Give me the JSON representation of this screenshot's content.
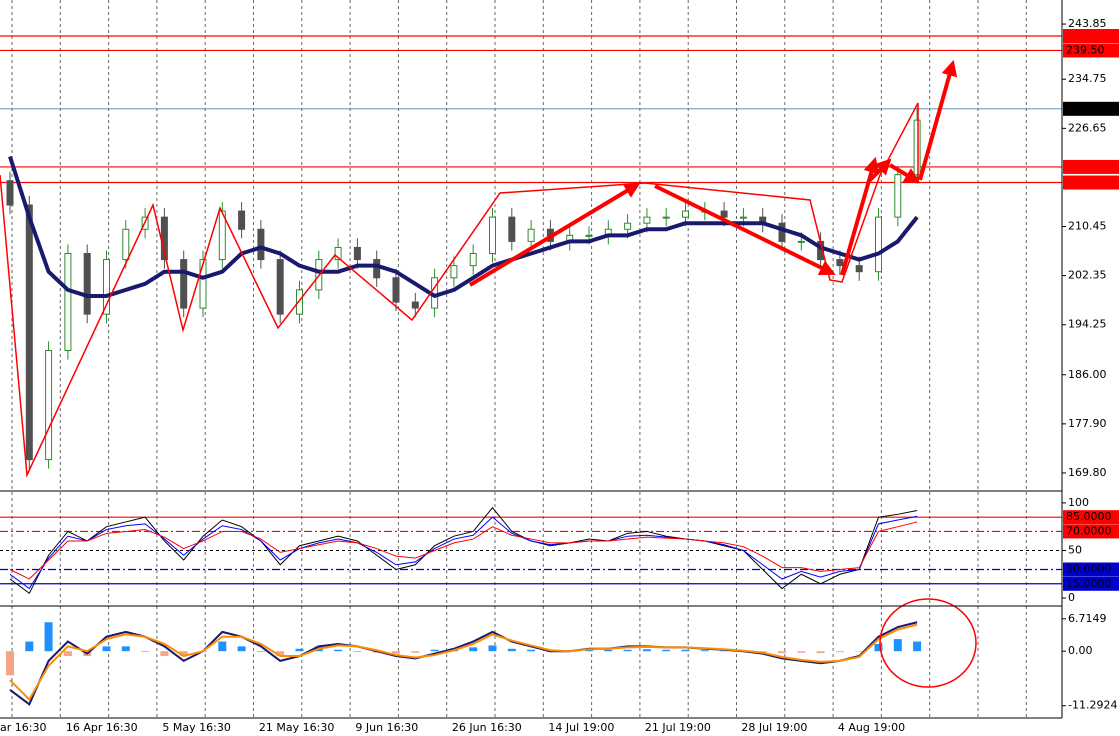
{
  "chart_data": [
    {
      "type": "candlestick",
      "x": [
        null,
        null,
        null,
        "16 Apr 16:30",
        null,
        null,
        null,
        null,
        "5 May 16:30",
        null,
        null,
        null,
        null,
        "21 May 16:30",
        null,
        null,
        null,
        null,
        "9 Jun 16:30",
        null,
        null,
        null,
        null,
        "26 Jun 16:30",
        null,
        null,
        null,
        null,
        "14 Jul 19:00",
        null,
        null,
        null,
        null,
        "21 Jul 19:00",
        null,
        null,
        null,
        null,
        "28 Jul 19:00",
        null,
        null,
        null,
        null,
        "4 Aug 19:00",
        null,
        null,
        null,
        null
      ],
      "x_first_label": "ar 16:30",
      "open": [
        218,
        214,
        172,
        190,
        206,
        196,
        205,
        210,
        212,
        205,
        197,
        205,
        213,
        210,
        205,
        196,
        200,
        205,
        207,
        205,
        202,
        198,
        197,
        202,
        204,
        206,
        212,
        208,
        210,
        208,
        209,
        209,
        210,
        211,
        212,
        212,
        213,
        213,
        212,
        212,
        211,
        208,
        208,
        205,
        204,
        203,
        212,
        219
      ],
      "high": [
        219.5,
        215.5,
        191.5,
        207.5,
        207.5,
        206.5,
        211.5,
        213.5,
        213.5,
        206.5,
        206.5,
        214.5,
        214.5,
        211.5,
        206.5,
        201.5,
        206.5,
        208.5,
        208.5,
        206.5,
        203.5,
        199.5,
        203.5,
        205.5,
        207.5,
        213.5,
        213.5,
        211.5,
        211.5,
        210.5,
        210.5,
        211.5,
        212.5,
        213.5,
        213.5,
        214.5,
        214.5,
        214.5,
        213.5,
        213.5,
        212.5,
        209.5,
        209.5,
        206.5,
        205.5,
        213.5,
        220.5,
        230
      ],
      "low": [
        212.5,
        170.5,
        170.5,
        188.5,
        194.5,
        194.5,
        203.5,
        208.5,
        203.5,
        195.5,
        195.5,
        203.5,
        208.5,
        203.5,
        194.5,
        194.5,
        198.5,
        203.5,
        203.5,
        200.5,
        196.5,
        195.5,
        195.5,
        200.5,
        202.5,
        204.5,
        206.5,
        206.5,
        206.5,
        206.5,
        207.5,
        207.5,
        208.5,
        209.5,
        210.5,
        210.5,
        211.5,
        210.5,
        210.5,
        209.5,
        206.5,
        206.5,
        203.5,
        202.5,
        201.5,
        201.5,
        210.5,
        217.5
      ],
      "close": [
        214,
        172,
        190,
        206,
        196,
        205,
        210,
        212,
        205,
        197,
        205,
        213,
        210,
        205,
        196,
        200,
        205,
        207,
        205,
        202,
        198,
        197,
        202,
        204,
        206,
        212,
        208,
        210,
        208,
        209,
        209,
        210,
        211,
        212,
        212,
        213,
        213,
        212,
        212,
        211,
        208,
        208,
        205,
        204,
        203,
        212,
        219,
        228
      ],
      "up_color": "#2e8b2e",
      "down_color": "#505050",
      "series": [
        {
          "color": "#191970",
          "values": [
            222,
            212,
            203,
            200,
            199,
            199,
            200,
            201,
            203,
            203,
            202,
            203,
            206,
            207,
            206,
            204,
            203,
            203,
            204,
            204,
            203,
            201,
            199,
            200,
            202,
            204,
            205,
            206,
            207,
            208,
            208,
            209,
            209,
            210,
            210,
            211,
            211,
            211,
            211,
            211,
            210,
            209,
            207,
            206,
            205,
            206,
            208,
            212
          ]
        }
      ],
      "ylim": [
        166.99,
        247.82
      ],
      "yticks": [
        {
          "value": 169.8,
          "label": "169.80"
        },
        {
          "value": 177.9,
          "label": "177.90"
        },
        {
          "value": 186,
          "label": "186.00"
        },
        194.25,
        202.35,
        210.45,
        226.65,
        234.75,
        243.85
      ],
      "levels": [
        {
          "value": 241.88,
          "color": "#ff0000",
          "box": "#ff0000"
        },
        {
          "value": 239.5,
          "label": "239.50",
          "color": "#ff0000",
          "box": "#ff0000"
        },
        {
          "value": 229.87,
          "color": "#4682b4",
          "box": "#000000"
        },
        {
          "value": 220.28,
          "color": "#ff0000",
          "box": "#ff0000"
        },
        {
          "value": 217.71,
          "color": "#ff0000",
          "box": "#ff0000"
        }
      ],
      "grid": true
    },
    {
      "type": "line",
      "series": [
        {
          "color": "#000000",
          "values": [
            20,
            5,
            45,
            70,
            60,
            75,
            80,
            85,
            60,
            40,
            65,
            82,
            75,
            60,
            35,
            55,
            60,
            65,
            60,
            45,
            30,
            35,
            55,
            65,
            70,
            95,
            70,
            60,
            55,
            58,
            62,
            60,
            68,
            70,
            65,
            62,
            60,
            55,
            50,
            30,
            10,
            25,
            15,
            25,
            30,
            85,
            88,
            92
          ]
        },
        {
          "color": "#0000ff",
          "values": [
            25,
            10,
            42,
            65,
            60,
            72,
            76,
            78,
            62,
            45,
            62,
            76,
            72,
            60,
            40,
            52,
            58,
            62,
            58,
            48,
            35,
            38,
            52,
            62,
            66,
            85,
            68,
            60,
            56,
            58,
            60,
            60,
            65,
            66,
            64,
            62,
            60,
            56,
            50,
            35,
            20,
            28,
            22,
            28,
            30,
            78,
            82,
            86
          ]
        },
        {
          "color": "#ff0000",
          "values": [
            30,
            20,
            40,
            60,
            60,
            68,
            70,
            72,
            64,
            52,
            60,
            70,
            70,
            62,
            48,
            52,
            56,
            60,
            58,
            52,
            44,
            42,
            50,
            58,
            62,
            75,
            66,
            62,
            58,
            58,
            60,
            60,
            62,
            64,
            63,
            62,
            60,
            58,
            54,
            44,
            32,
            32,
            28,
            30,
            32,
            70,
            75,
            80
          ]
        }
      ],
      "ylim": [
        -7.3,
        110.4
      ],
      "yticks": [
        0,
        50,
        100
      ],
      "levels": [
        {
          "value": 85,
          "label": "85.0000",
          "color": "#ff0000",
          "box": "#ff0000",
          "style": "solid"
        },
        {
          "value": 70,
          "label": "70.0000",
          "color": "#ff0000",
          "box": "#ff0000",
          "style": "dashdot"
        },
        {
          "value": 30,
          "label": "30.0000",
          "color": "#0000cd",
          "box": "#0000cd",
          "style": "dashdot"
        },
        {
          "value": 15,
          "label": "15.0000",
          "color": "#0000cd",
          "box": "#0000cd",
          "style": "solid"
        }
      ]
    },
    {
      "type": "macd",
      "values": [
        -5,
        2,
        6,
        -1,
        -1,
        1,
        1,
        0,
        -1,
        -1,
        0,
        2,
        1,
        0,
        -1,
        0.5,
        1,
        0.3,
        0,
        -0.3,
        -0.5,
        -0.3,
        0.3,
        0.6,
        0.8,
        1.2,
        0.5,
        0.3,
        -0.2,
        0.2,
        0.3,
        0.3,
        0.3,
        0.4,
        0.3,
        0.3,
        0.2,
        0.1,
        0,
        -0.2,
        -0.4,
        -0.3,
        -0.4,
        -0.2,
        -0.1,
        1.5,
        2.5,
        2
      ],
      "pos_color": "#1e90ff",
      "neg_color": "#f4a582",
      "series": [
        {
          "color": "#191970",
          "values": [
            -8,
            -11,
            -2,
            2,
            -0.5,
            3,
            4,
            3,
            1,
            -2,
            0,
            4,
            3,
            1,
            -2,
            -1,
            1,
            1.5,
            1,
            0,
            -1,
            -1.5,
            -0.5,
            0.5,
            2,
            4,
            2,
            1,
            0,
            0,
            0.5,
            0.5,
            1,
            1,
            0.8,
            0.8,
            0.5,
            0.3,
            0,
            -0.5,
            -1.5,
            -2,
            -2.5,
            -2,
            -1,
            3,
            5,
            6
          ]
        },
        {
          "color": "#ff8c00",
          "values": [
            -6,
            -10,
            -3,
            1,
            0,
            2.5,
            3.5,
            3,
            1.5,
            -1,
            0,
            3,
            3,
            1.5,
            -1,
            -1,
            0.5,
            1.2,
            1,
            0.2,
            -0.8,
            -1.3,
            -0.8,
            0.2,
            1.5,
            3.5,
            2.2,
            1.2,
            0.2,
            0,
            0.4,
            0.5,
            0.8,
            0.9,
            0.8,
            0.8,
            0.6,
            0.4,
            0.1,
            -0.3,
            -1.2,
            -1.8,
            -2.2,
            -2,
            -1.2,
            2.5,
            4.5,
            5.5
          ]
        }
      ],
      "ylim": [
        -13.63,
        8.95
      ],
      "yticks": [
        -11.2924,
        {
          "value": 0,
          "label": "0.00"
        },
        6.7149
      ]
    }
  ]
}
